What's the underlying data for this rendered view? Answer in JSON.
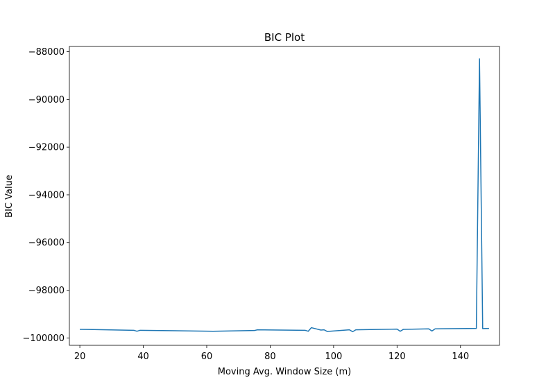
{
  "chart_data": {
    "type": "line",
    "title": "BIC Plot",
    "xlabel": "Moving Avg. Window Size (m)",
    "ylabel": "BIC Value",
    "xlim": [
      16.7,
      152.3
    ],
    "ylim": [
      -100310,
      -87780
    ],
    "xticks": [
      20,
      40,
      60,
      80,
      100,
      120,
      140
    ],
    "yticks": [
      -100000,
      -98000,
      -96000,
      -94000,
      -92000,
      -90000,
      -88000
    ],
    "grid": false,
    "legend": "none",
    "series": [
      {
        "color": "#1f77b4",
        "x": [
          20,
          37,
          38,
          39,
          62,
          75,
          76,
          91,
          92,
          93,
          96,
          97,
          98,
          105,
          106,
          107,
          120,
          121,
          122,
          130,
          131,
          132,
          145,
          146,
          147,
          149
        ],
        "y": [
          -99640,
          -99680,
          -99720,
          -99680,
          -99720,
          -99690,
          -99660,
          -99680,
          -99720,
          -99570,
          -99670,
          -99660,
          -99730,
          -99660,
          -99740,
          -99660,
          -99630,
          -99720,
          -99640,
          -99620,
          -99710,
          -99620,
          -99600,
          -88300,
          -99610,
          -99600
        ]
      }
    ]
  }
}
